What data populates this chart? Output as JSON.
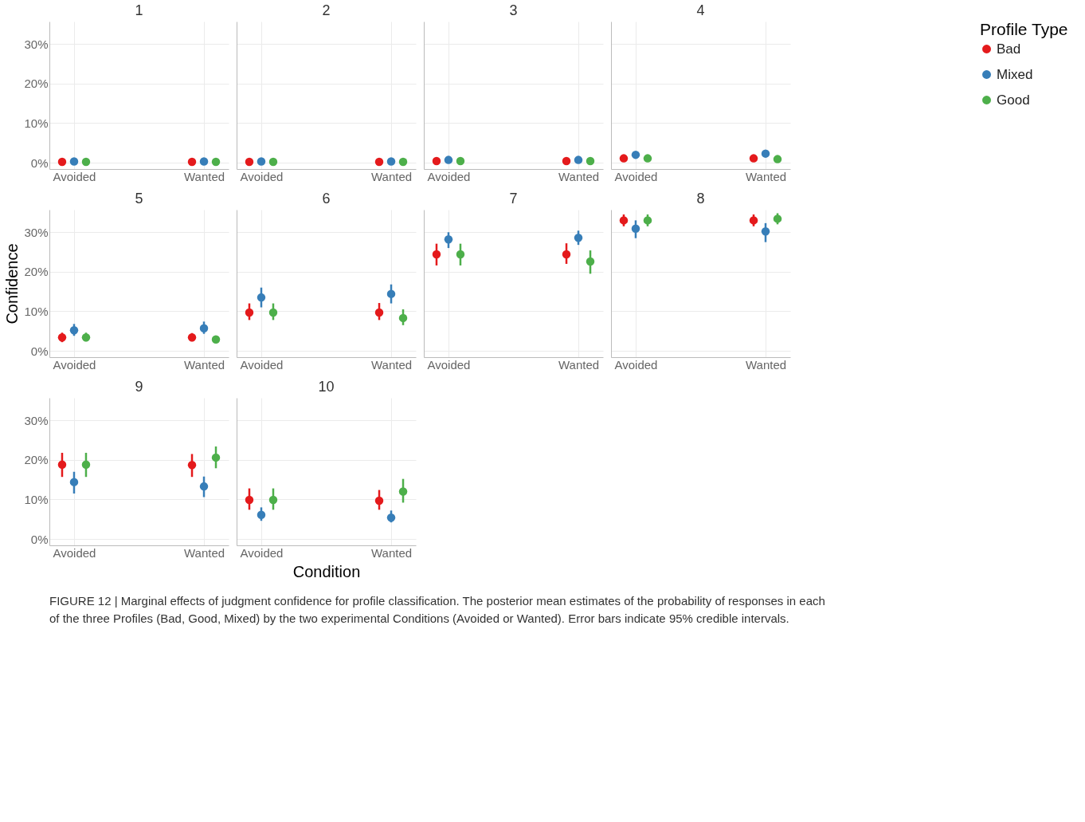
{
  "chart_data": [
    {
      "type": "scatter",
      "title": "1",
      "legend": "right",
      "legend_title": "Profile Type",
      "categories": [
        "Avoided",
        "Wanted"
      ],
      "ylim": [
        -1.6,
        35.7
      ],
      "yticks": [
        {
          "value": 0,
          "label": "0%"
        },
        {
          "value": 10,
          "label": "10%"
        },
        {
          "value": 20,
          "label": "20%"
        },
        {
          "value": 30,
          "label": "30%"
        }
      ],
      "grid": true,
      "marker": "circle",
      "series": [
        {
          "name": "Bad",
          "color": "#e41a1c",
          "values": [
            0.2,
            0.2
          ]
        },
        {
          "name": "Mixed",
          "color": "#377eb8",
          "values": [
            0.3,
            0.3
          ]
        },
        {
          "name": "Good",
          "color": "#4daf4a",
          "values": [
            0.2,
            0.2
          ]
        }
      ]
    },
    {
      "type": "scatter",
      "title": "2",
      "categories": [
        "Avoided",
        "Wanted"
      ],
      "ylim": [
        -1.6,
        35.7
      ],
      "yticks": [
        {
          "value": 0,
          "label": "0%"
        },
        {
          "value": 10,
          "label": "10%"
        },
        {
          "value": 20,
          "label": "20%"
        },
        {
          "value": 30,
          "label": "30%"
        }
      ],
      "grid": true,
      "marker": "circle",
      "tick_labels": "x",
      "series": [
        {
          "name": "Bad",
          "color": "#e41a1c",
          "values": [
            0.2,
            0.2
          ]
        },
        {
          "name": "Mixed",
          "color": "#377eb8",
          "values": [
            0.3,
            0.3
          ]
        },
        {
          "name": "Good",
          "color": "#4daf4a",
          "values": [
            0.2,
            0.2
          ]
        }
      ]
    },
    {
      "type": "scatter",
      "title": "3",
      "categories": [
        "Avoided",
        "Wanted"
      ],
      "ylim": [
        -1.6,
        35.7
      ],
      "yticks": [
        {
          "value": 0,
          "label": "0%"
        },
        {
          "value": 10,
          "label": "10%"
        },
        {
          "value": 20,
          "label": "20%"
        },
        {
          "value": 30,
          "label": "30%"
        }
      ],
      "grid": true,
      "marker": "circle",
      "tick_labels": "x",
      "series": [
        {
          "name": "Bad",
          "color": "#e41a1c",
          "values": [
            0.4,
            0.4
          ]
        },
        {
          "name": "Mixed",
          "color": "#377eb8",
          "values": [
            0.7,
            0.7
          ]
        },
        {
          "name": "Good",
          "color": "#4daf4a",
          "values": [
            0.4,
            0.4
          ]
        }
      ]
    },
    {
      "type": "scatter",
      "title": "4",
      "categories": [
        "Avoided",
        "Wanted"
      ],
      "ylim": [
        -1.6,
        35.7
      ],
      "yticks": [
        {
          "value": 0,
          "label": "0%"
        },
        {
          "value": 10,
          "label": "10%"
        },
        {
          "value": 20,
          "label": "20%"
        },
        {
          "value": 30,
          "label": "30%"
        }
      ],
      "grid": true,
      "marker": "circle",
      "tick_labels": "x",
      "series": [
        {
          "name": "Bad",
          "color": "#e41a1c",
          "values": [
            1.1,
            1.1
          ]
        },
        {
          "name": "Mixed",
          "color": "#377eb8",
          "values": [
            2.0,
            2.3
          ]
        },
        {
          "name": "Good",
          "color": "#4daf4a",
          "values": [
            1.1,
            0.9
          ]
        }
      ]
    },
    {
      "type": "scatter",
      "title": "5",
      "ylabel": "Confidence",
      "categories": [
        "Avoided",
        "Wanted"
      ],
      "ylim": [
        -1.6,
        35.7
      ],
      "yticks": [
        {
          "value": 0,
          "label": "0%"
        },
        {
          "value": 10,
          "label": "10%"
        },
        {
          "value": 20,
          "label": "20%"
        },
        {
          "value": 30,
          "label": "30%"
        }
      ],
      "grid": true,
      "marker": "circle",
      "series": [
        {
          "name": "Bad",
          "color": "#e41a1c",
          "values": [
            3.4,
            3.4
          ],
          "errors": [
            [
              2.2,
              4.6
            ],
            [
              2.4,
              4.5
            ]
          ]
        },
        {
          "name": "Mixed",
          "color": "#377eb8",
          "values": [
            5.2,
            5.7
          ],
          "errors": [
            [
              3.8,
              6.8
            ],
            [
              4.3,
              7.4
            ]
          ]
        },
        {
          "name": "Good",
          "color": "#4daf4a",
          "values": [
            3.4,
            2.9
          ],
          "errors": [
            [
              2.4,
              4.6
            ],
            [
              2.0,
              3.6
            ]
          ]
        }
      ]
    },
    {
      "type": "scatter",
      "title": "6",
      "categories": [
        "Avoided",
        "Wanted"
      ],
      "ylim": [
        -1.6,
        35.7
      ],
      "yticks": [
        {
          "value": 0,
          "label": "0%"
        },
        {
          "value": 10,
          "label": "10%"
        },
        {
          "value": 20,
          "label": "20%"
        },
        {
          "value": 30,
          "label": "30%"
        }
      ],
      "grid": true,
      "marker": "circle",
      "tick_labels": "x",
      "series": [
        {
          "name": "Bad",
          "color": "#e41a1c",
          "values": [
            9.7,
            9.7
          ],
          "errors": [
            [
              7.8,
              12.0
            ],
            [
              7.8,
              12.1
            ]
          ]
        },
        {
          "name": "Mixed",
          "color": "#377eb8",
          "values": [
            13.5,
            14.4
          ],
          "errors": [
            [
              11.0,
              16.0
            ],
            [
              12.0,
              16.8
            ]
          ]
        },
        {
          "name": "Good",
          "color": "#4daf4a",
          "values": [
            9.7,
            8.3
          ],
          "errors": [
            [
              7.8,
              12.0
            ],
            [
              6.5,
              10.5
            ]
          ]
        }
      ]
    },
    {
      "type": "scatter",
      "title": "7",
      "categories": [
        "Avoided",
        "Wanted"
      ],
      "ylim": [
        -1.6,
        35.7
      ],
      "yticks": [
        {
          "value": 0,
          "label": "0%"
        },
        {
          "value": 10,
          "label": "10%"
        },
        {
          "value": 20,
          "label": "20%"
        },
        {
          "value": 30,
          "label": "30%"
        }
      ],
      "grid": true,
      "marker": "circle",
      "tick_labels": "x",
      "series": [
        {
          "name": "Bad",
          "color": "#e41a1c",
          "values": [
            24.4,
            24.4
          ],
          "errors": [
            [
              21.6,
              27.1
            ],
            [
              22.0,
              27.2
            ]
          ]
        },
        {
          "name": "Mixed",
          "color": "#377eb8",
          "values": [
            28.2,
            28.6
          ],
          "errors": [
            [
              26.0,
              30.0
            ],
            [
              26.8,
              30.4
            ]
          ]
        },
        {
          "name": "Good",
          "color": "#4daf4a",
          "values": [
            24.4,
            22.6
          ],
          "errors": [
            [
              21.6,
              27.1
            ],
            [
              19.5,
              25.4
            ]
          ]
        }
      ]
    },
    {
      "type": "scatter",
      "title": "8",
      "categories": [
        "Avoided",
        "Wanted"
      ],
      "ylim": [
        -1.6,
        35.7
      ],
      "yticks": [
        {
          "value": 0,
          "label": "0%"
        },
        {
          "value": 10,
          "label": "10%"
        },
        {
          "value": 20,
          "label": "20%"
        },
        {
          "value": 30,
          "label": "30%"
        }
      ],
      "grid": true,
      "marker": "circle",
      "tick_labels": "x",
      "series": [
        {
          "name": "Bad",
          "color": "#e41a1c",
          "values": [
            33.0,
            33.0
          ],
          "errors": [
            [
              31.5,
              34.5
            ],
            [
              31.5,
              34.5
            ]
          ]
        },
        {
          "name": "Mixed",
          "color": "#377eb8",
          "values": [
            30.9,
            30.2
          ],
          "errors": [
            [
              28.5,
              33.0
            ],
            [
              27.5,
              32.3
            ]
          ]
        },
        {
          "name": "Good",
          "color": "#4daf4a",
          "values": [
            33.0,
            33.4
          ],
          "errors": [
            [
              31.5,
              34.5
            ],
            [
              32.0,
              34.8
            ]
          ]
        }
      ]
    },
    {
      "type": "scatter",
      "title": "9",
      "categories": [
        "Avoided",
        "Wanted"
      ],
      "ylim": [
        -1.6,
        35.7
      ],
      "yticks": [
        {
          "value": 0,
          "label": "0%"
        },
        {
          "value": 10,
          "label": "10%"
        },
        {
          "value": 20,
          "label": "20%"
        },
        {
          "value": 30,
          "label": "30%"
        }
      ],
      "grid": true,
      "marker": "circle",
      "series": [
        {
          "name": "Bad",
          "color": "#e41a1c",
          "values": [
            18.8,
            18.7
          ],
          "errors": [
            [
              15.7,
              21.8
            ],
            [
              15.7,
              21.5
            ]
          ]
        },
        {
          "name": "Mixed",
          "color": "#377eb8",
          "values": [
            14.4,
            13.3
          ],
          "errors": [
            [
              11.5,
              17.0
            ],
            [
              10.6,
              15.8
            ]
          ]
        },
        {
          "name": "Good",
          "color": "#4daf4a",
          "values": [
            18.8,
            20.6
          ],
          "errors": [
            [
              15.7,
              21.8
            ],
            [
              17.9,
              23.4
            ]
          ]
        }
      ]
    },
    {
      "type": "scatter",
      "title": "10",
      "xlabel": "Condition",
      "categories": [
        "Avoided",
        "Wanted"
      ],
      "ylim": [
        -1.6,
        35.7
      ],
      "yticks": [
        {
          "value": 0,
          "label": "0%"
        },
        {
          "value": 10,
          "label": "10%"
        },
        {
          "value": 20,
          "label": "20%"
        },
        {
          "value": 30,
          "label": "30%"
        }
      ],
      "grid": true,
      "marker": "circle",
      "tick_labels": "x",
      "annotations": [
        "FIGURE 12 | Marginal effects of judgment confidence for profile classification. The posterior mean estimates of the probability of responses in each of the three Profiles (Bad, Good, Mixed) by the two experimental Conditions (Avoided or Wanted). Error bars indicate 95% credible intervals."
      ],
      "series": [
        {
          "name": "Bad",
          "color": "#e41a1c",
          "values": [
            9.9,
            9.7
          ],
          "errors": [
            [
              7.4,
              12.8
            ],
            [
              7.4,
              12.4
            ]
          ]
        },
        {
          "name": "Mixed",
          "color": "#377eb8",
          "values": [
            6.1,
            5.4
          ],
          "errors": [
            [
              4.6,
              8.0
            ],
            [
              4.2,
              7.2
            ]
          ]
        },
        {
          "name": "Good",
          "color": "#4daf4a",
          "values": [
            9.9,
            12.0
          ],
          "errors": [
            [
              7.4,
              12.8
            ],
            [
              9.2,
              15.2
            ]
          ]
        }
      ]
    }
  ]
}
